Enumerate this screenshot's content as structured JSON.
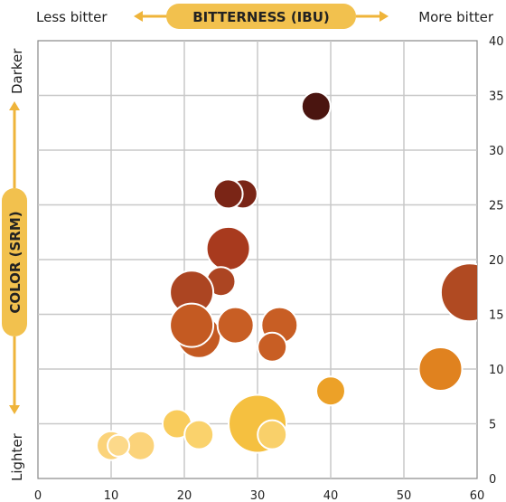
{
  "header": {
    "title": "BITTERNESS (IBU)",
    "left_label": "Less bitter",
    "right_label": "More bitter"
  },
  "side": {
    "title": "COLOR (SRM)",
    "top_label": "Darker",
    "bottom_label": "Lighter"
  },
  "colors": {
    "pill": "#f2c14e",
    "arrow": "#efb43a",
    "grid": "#c8c8c8",
    "frame": "#888888"
  },
  "chart_data": {
    "type": "scatter",
    "title": "",
    "xlabel": "BITTERNESS (IBU)",
    "ylabel": "COLOR (SRM)",
    "xlim": [
      0,
      60
    ],
    "ylim": [
      0,
      40
    ],
    "xticks": [
      "0",
      "10",
      "20",
      "30",
      "40",
      "50",
      "60"
    ],
    "yticks": [
      "0",
      "5",
      "10",
      "15",
      "20",
      "25",
      "30",
      "35",
      "40"
    ],
    "grid": true,
    "points": [
      {
        "x": 38,
        "y": 34,
        "size": 2,
        "color": "#4a1510"
      },
      {
        "x": 28,
        "y": 26,
        "size": 2,
        "color": "#7a2516"
      },
      {
        "x": 26,
        "y": 26,
        "size": 2,
        "color": "#7a2516"
      },
      {
        "x": 26,
        "y": 21,
        "size": 3,
        "color": "#a83a1e"
      },
      {
        "x": 25,
        "y": 18,
        "size": 2,
        "color": "#ac4522"
      },
      {
        "x": 21,
        "y": 17,
        "size": 3,
        "color": "#ac4522"
      },
      {
        "x": 59,
        "y": 17,
        "size": 4,
        "color": "#b04a22"
      },
      {
        "x": 22,
        "y": 13,
        "size": 3,
        "color": "#c45a22"
      },
      {
        "x": 21,
        "y": 14,
        "size": 3,
        "color": "#c45a22"
      },
      {
        "x": 27,
        "y": 14,
        "size": 2.5,
        "color": "#c85e24"
      },
      {
        "x": 33,
        "y": 14,
        "size": 2.5,
        "color": "#c85e24"
      },
      {
        "x": 32,
        "y": 12,
        "size": 2,
        "color": "#c85e24"
      },
      {
        "x": 55,
        "y": 10,
        "size": 3,
        "color": "#e0821f"
      },
      {
        "x": 40,
        "y": 8,
        "size": 2,
        "color": "#eca128"
      },
      {
        "x": 30,
        "y": 5,
        "size": 4,
        "color": "#f5c040"
      },
      {
        "x": 32,
        "y": 4,
        "size": 2,
        "color": "#f9d06a"
      },
      {
        "x": 19,
        "y": 5,
        "size": 2,
        "color": "#f9cc5c"
      },
      {
        "x": 22,
        "y": 4,
        "size": 2,
        "color": "#fad26c"
      },
      {
        "x": 14,
        "y": 3,
        "size": 2,
        "color": "#fbd37a"
      },
      {
        "x": 10,
        "y": 3,
        "size": 2,
        "color": "#fbd37a"
      },
      {
        "x": 11,
        "y": 3,
        "size": 1.5,
        "color": "#fcd98a"
      }
    ]
  }
}
